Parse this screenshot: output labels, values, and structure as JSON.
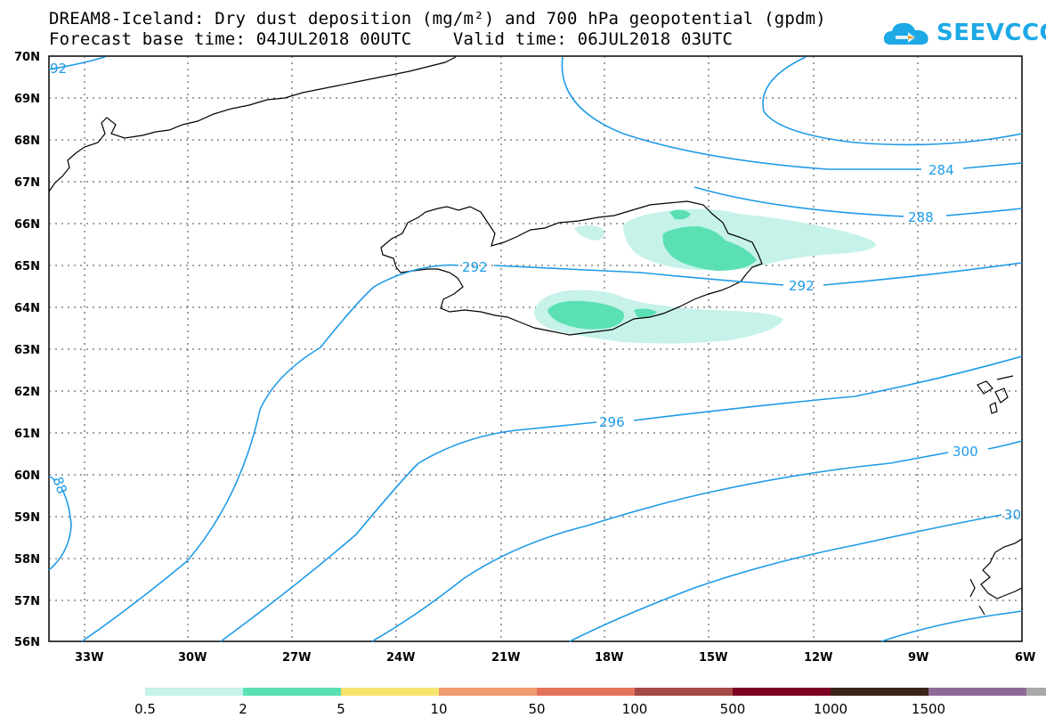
{
  "header": {
    "title_line1": "DREAM8-Iceland: Dry dust deposition (mg/m²) and 700 hPa geopotential (gpdm)",
    "title_line2": "Forecast base time: 04JUL2018 00UTC    Valid time: 06JUL2018 03UTC"
  },
  "logo": {
    "text": "SEEVCCC",
    "icon": "cloud-icon"
  },
  "axes": {
    "lat_labels": [
      "70N",
      "69N",
      "68N",
      "67N",
      "66N",
      "65N",
      "64N",
      "63N",
      "62N",
      "61N",
      "60N",
      "59N",
      "58N",
      "57N",
      "56N"
    ],
    "lon_labels": [
      "33W",
      "30W",
      "27W",
      "24W",
      "21W",
      "18W",
      "15W",
      "12W",
      "9W",
      "6W"
    ]
  },
  "contour_labels": [
    {
      "text": "92"
    },
    {
      "text": "284"
    },
    {
      "text": "288"
    },
    {
      "text": "292"
    },
    {
      "text": "292"
    },
    {
      "text": "296"
    },
    {
      "text": "300"
    },
    {
      "text": "30"
    },
    {
      "text": "88"
    }
  ],
  "legend": {
    "colors": [
      "#c6f2ea",
      "#5be0b4",
      "#f7e46c",
      "#ef9a70",
      "#e5735a",
      "#a44a44",
      "#7d0024",
      "#3a2419",
      "#8d6b96",
      "#a8a8a8"
    ],
    "labels": [
      "0.5",
      "2",
      "5",
      "10",
      "50",
      "100",
      "500",
      "1000",
      "1500"
    ]
  },
  "colors": {
    "contour": "#1e9be6",
    "land_outline": "#000000",
    "grid": "#555555"
  }
}
